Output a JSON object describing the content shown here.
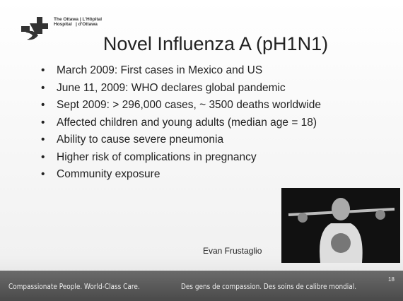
{
  "header": {
    "logo_lines": [
      "The Ottawa | L'Hôpital",
      "Hospital   | d'Ottawa"
    ]
  },
  "title": "Novel Influenza A (pH1N1)",
  "bullets": [
    "March 2009: First cases in Mexico and US",
    "June 11, 2009: WHO declares global pandemic",
    "Sept 2009: > 296,000 cases, ~ 3500 deaths worldwide",
    "Affected children and young adults (median age = 18)",
    "Ability to cause severe pneumonia",
    "Higher risk of complications in pregnancy",
    "Community exposure"
  ],
  "caption": "Evan Frustaglio",
  "footer": {
    "left": "Compassionate People. World-Class Care.",
    "right": "Des gens de compassion. Des soins de calibre mondial."
  },
  "page_number": "18"
}
